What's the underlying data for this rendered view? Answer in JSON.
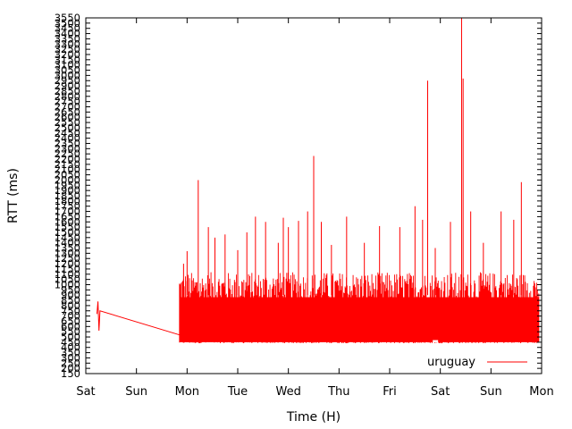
{
  "chart_data": {
    "type": "line",
    "title": "",
    "xlabel": "Time (H)",
    "ylabel": "RTT (ms)",
    "xlim": [
      0,
      9
    ],
    "ylim": [
      150,
      3550
    ],
    "x_tick_labels": [
      "Sat",
      "Sun",
      "Mon",
      "Tue",
      "Wed",
      "Thu",
      "Fri",
      "Sat",
      "Sun",
      "Mon"
    ],
    "y_ticks": [
      150,
      200,
      250,
      300,
      350,
      400,
      450,
      500,
      550,
      600,
      650,
      700,
      750,
      800,
      850,
      900,
      950,
      1000,
      1050,
      1100,
      1150,
      1200,
      1250,
      1300,
      1350,
      1400,
      1450,
      1500,
      1550,
      1600,
      1650,
      1700,
      1750,
      1800,
      1850,
      1900,
      1950,
      2000,
      2050,
      2100,
      2150,
      2200,
      2250,
      2300,
      2350,
      2400,
      2450,
      2500,
      2550,
      2600,
      2650,
      2700,
      2750,
      2800,
      2850,
      2900,
      2950,
      3000,
      3050,
      3100,
      3150,
      3200,
      3250,
      3300,
      3350,
      3400,
      3450,
      3500,
      3550
    ],
    "grid": false,
    "legend": {
      "position": "bottom-right"
    },
    "series": [
      {
        "name": "uruguay",
        "color": "#ff0000",
        "baseline_range": [
          450,
          1000
        ],
        "sparse_segment": [
          [
            0.22,
            720
          ],
          [
            0.24,
            840
          ],
          [
            0.26,
            560
          ],
          [
            0.28,
            750
          ],
          [
            1.85,
            520
          ]
        ],
        "dense_range_x": [
          1.85,
          8.95
        ],
        "spikes": [
          [
            1.93,
            1200
          ],
          [
            2.0,
            1320
          ],
          [
            2.22,
            2000
          ],
          [
            2.42,
            1550
          ],
          [
            2.55,
            1450
          ],
          [
            2.75,
            1480
          ],
          [
            3.0,
            1330
          ],
          [
            3.18,
            1500
          ],
          [
            3.35,
            1650
          ],
          [
            3.55,
            1600
          ],
          [
            3.8,
            1400
          ],
          [
            3.9,
            1640
          ],
          [
            4.0,
            1550
          ],
          [
            4.2,
            1610
          ],
          [
            4.38,
            1700
          ],
          [
            4.5,
            2230
          ],
          [
            4.65,
            1600
          ],
          [
            4.85,
            1380
          ],
          [
            5.15,
            1650
          ],
          [
            5.5,
            1400
          ],
          [
            5.8,
            1560
          ],
          [
            6.2,
            1550
          ],
          [
            6.5,
            1750
          ],
          [
            6.65,
            1620
          ],
          [
            6.75,
            2950
          ],
          [
            6.9,
            1350
          ],
          [
            7.2,
            1600
          ],
          [
            7.42,
            3550
          ],
          [
            7.45,
            2970
          ],
          [
            7.6,
            1700
          ],
          [
            7.85,
            1400
          ],
          [
            8.2,
            1700
          ],
          [
            8.45,
            1620
          ],
          [
            8.6,
            1980
          ]
        ]
      }
    ]
  }
}
